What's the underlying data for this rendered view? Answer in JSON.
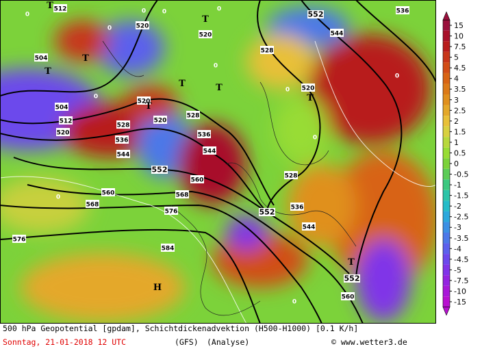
{
  "footer": {
    "title": "500 hPa Geopotential [gpdam], Schichtdickenadvektion (H500-H1000) [0.1 K/h]",
    "date": "Sonntag, 21-01-2018  12 UTC",
    "model": "(GFS)",
    "run": "(Analyse)",
    "credit": "© www.wetter3.de"
  },
  "colorbar": {
    "labels": [
      15,
      10,
      7.5,
      5,
      4.5,
      4,
      3.5,
      3,
      2.5,
      2,
      1.5,
      1,
      0.5,
      0,
      -0.5,
      -1,
      -1.5,
      -2,
      -2.5,
      -3,
      -3.5,
      -4,
      -4.5,
      -5,
      -7.5,
      -10,
      -15
    ],
    "colors": [
      "#9a0f3c",
      "#a8102a",
      "#b81c1c",
      "#c8361a",
      "#d24d16",
      "#d86414",
      "#dc7a18",
      "#e0901e",
      "#e4a82a",
      "#e8c038",
      "#d8d040",
      "#b8d83c",
      "#98dc34",
      "#7cd23a",
      "#5ccc58",
      "#3cc880",
      "#2cc4a8",
      "#24bcc8",
      "#2ca8dc",
      "#3c90e4",
      "#4c78e8",
      "#5c60ec",
      "#6c48ec",
      "#8034e8",
      "#9424e0",
      "#a818d8",
      "#b810d0"
    ]
  },
  "map": {
    "contour_labels": [
      "512",
      "504",
      "504",
      "512",
      "520",
      "528",
      "536",
      "544",
      "552",
      "560",
      "568",
      "576",
      "576",
      "584",
      "568",
      "560",
      "544",
      "536",
      "528",
      "520",
      "520",
      "520",
      "520",
      "528",
      "520",
      "544",
      "552",
      "536",
      "528",
      "552",
      "536",
      "544",
      "552",
      "560",
      "0",
      "0",
      "0",
      "0",
      "0",
      "0",
      "0",
      "0",
      "0",
      "0",
      "0",
      "0"
    ],
    "pressure_centers": [
      "T",
      "T",
      "T",
      "T",
      "T",
      "T",
      "T",
      "T",
      "T",
      "H"
    ]
  }
}
